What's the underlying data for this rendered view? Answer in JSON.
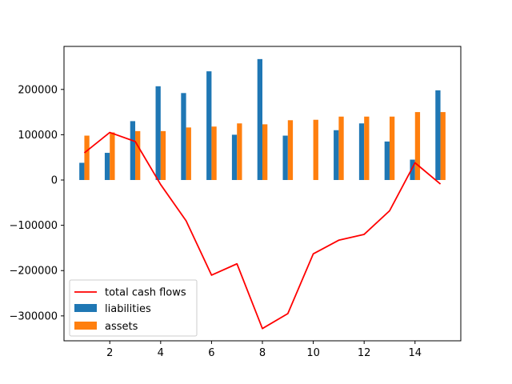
{
  "chart_data": {
    "type": "bar",
    "title": "",
    "xlabel": "",
    "ylabel": "",
    "x": [
      1,
      2,
      3,
      4,
      5,
      6,
      7,
      8,
      9,
      10,
      11,
      12,
      13,
      14,
      15
    ],
    "xlim": [
      0.2,
      15.8
    ],
    "ylim": [
      -355000,
      295000
    ],
    "xticks": [
      2,
      4,
      6,
      8,
      10,
      12,
      14
    ],
    "xtick_labels": [
      "2",
      "4",
      "6",
      "8",
      "10",
      "12",
      "14"
    ],
    "yticks": [
      -300000,
      -200000,
      -100000,
      0,
      100000,
      200000
    ],
    "ytick_labels": [
      "−300000",
      "−200000",
      "−100000",
      "0",
      "100000",
      "200000"
    ],
    "grid": false,
    "legend_position": "lower-left",
    "series": [
      {
        "name": "total cash flows",
        "type": "line",
        "color": "#ff0000",
        "values": [
          60000,
          105000,
          85000,
          -10000,
          -90000,
          -210000,
          -185000,
          -328000,
          -295000,
          -163000,
          -133000,
          -120000,
          -68000,
          38000,
          -9000
        ]
      },
      {
        "name": "liabilities",
        "type": "bar",
        "color": "#1f77b4",
        "values": [
          38000,
          60000,
          130000,
          207000,
          192000,
          240000,
          100000,
          267000,
          98000,
          0,
          110000,
          125000,
          85000,
          45000,
          198000
        ]
      },
      {
        "name": "assets",
        "type": "bar",
        "color": "#ff7f0e",
        "values": [
          98000,
          105000,
          108000,
          108000,
          116000,
          118000,
          125000,
          123000,
          132000,
          133000,
          140000,
          140000,
          140000,
          150000,
          150000
        ]
      }
    ]
  }
}
